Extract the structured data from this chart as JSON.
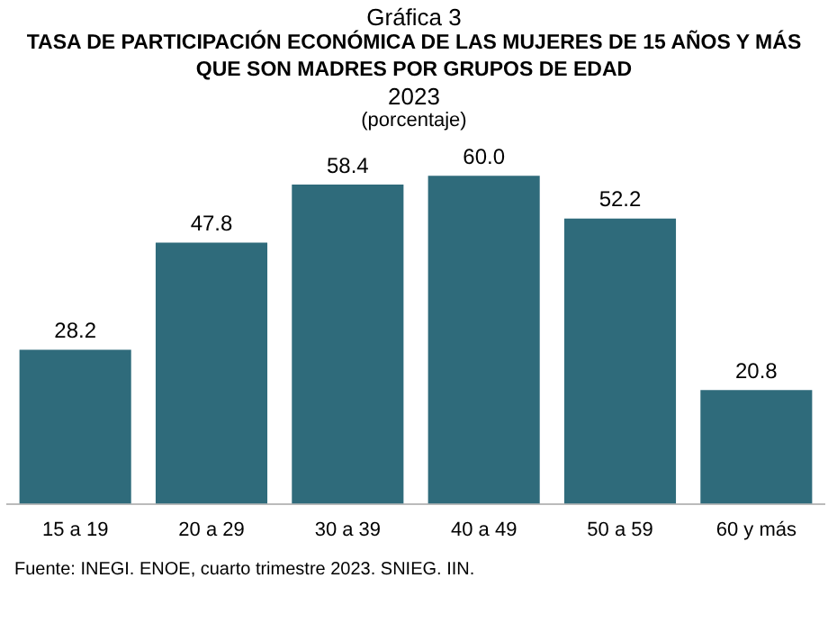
{
  "chart_data": {
    "type": "bar",
    "title": "Gráfica 3",
    "subtitle": "TASA DE PARTICIPACIÓN ECONÓMICA DE LAS MUJERES DE 15 AÑOS Y MÁS QUE SON MADRES POR GRUPOS DE EDAD",
    "annotations": [
      "2023",
      "(porcentaje)",
      "Fuente: INEGI. ENOE, cuarto trimestre 2023. SNIEG. IIN."
    ],
    "categories": [
      "15 a 19",
      "20 a 29",
      "30 a 39",
      "40 a 49",
      "50 a 59",
      "60 y más"
    ],
    "values": [
      28.2,
      47.8,
      58.4,
      60.0,
      52.2,
      20.8
    ],
    "value_labels": [
      "28.2",
      "47.8",
      "58.4",
      "60.0",
      "52.2",
      "20.8"
    ],
    "color": "#2f6b7b",
    "grid": false,
    "legend": false
  }
}
